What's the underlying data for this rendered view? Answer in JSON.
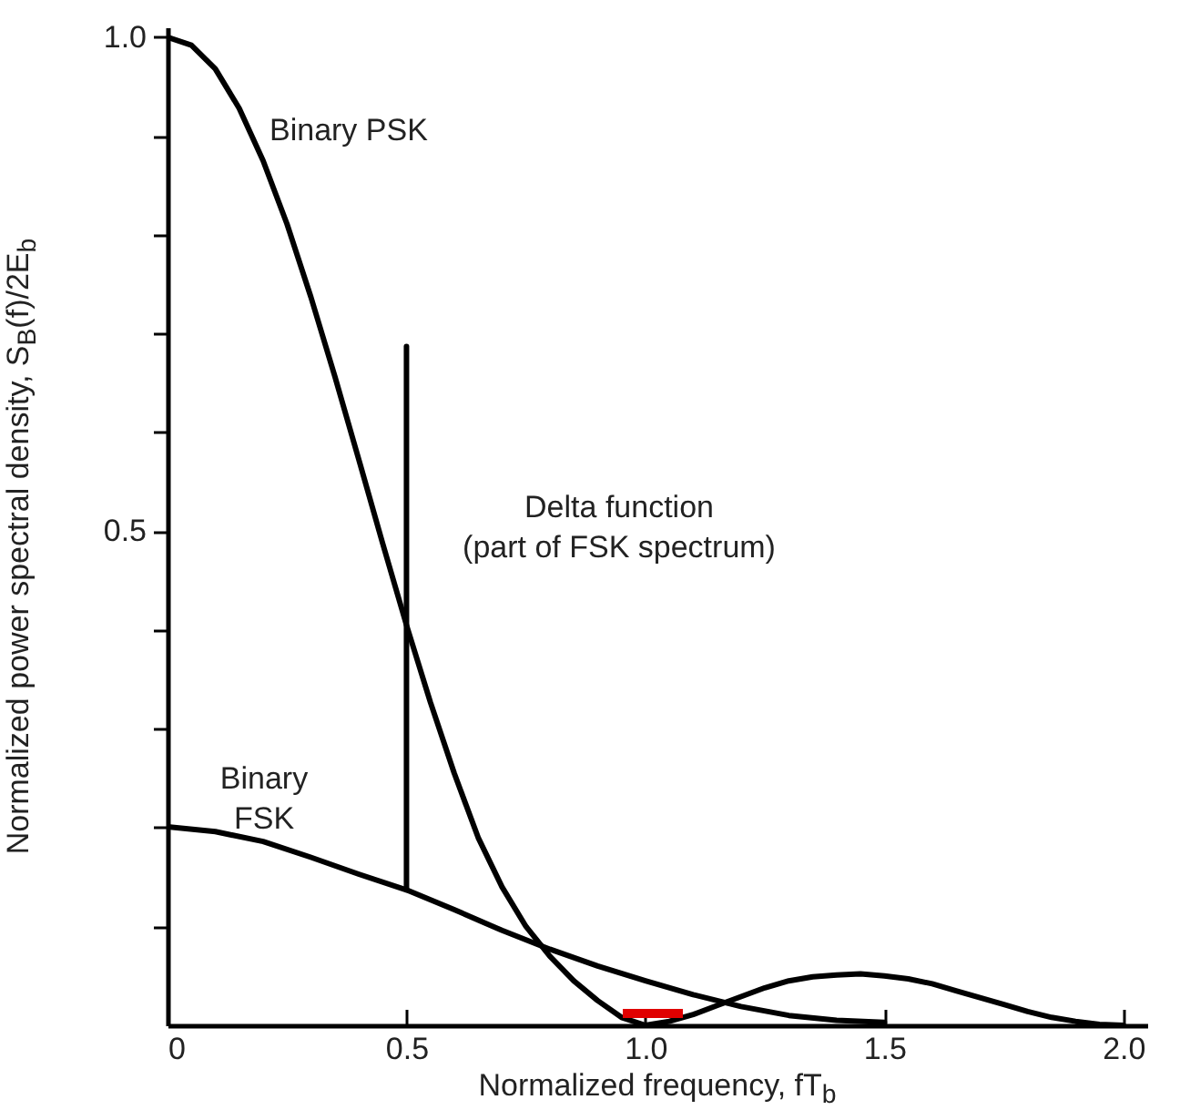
{
  "chart_data": {
    "type": "line",
    "xlabel": "Normalized frequency, fT$_{b}$",
    "ylabel": "Normalized power spectral density, S$_{B}$(f)/2E$_{b}$",
    "xlim": [
      0,
      2.05
    ],
    "ylim": [
      0,
      1.01
    ],
    "xticks": [
      0,
      0.5,
      {
        "value": 1,
        "label": "1.0"
      },
      1.5,
      {
        "value": 2,
        "label": "2.0"
      }
    ],
    "yticks": [
      {
        "value": 0.1,
        "label": null
      },
      {
        "value": 0.2,
        "label": null
      },
      {
        "value": 0.3,
        "label": null
      },
      {
        "value": 0.4,
        "label": null
      },
      0.5,
      {
        "value": 0.6,
        "label": null
      },
      {
        "value": 0.7,
        "label": null
      },
      {
        "value": 0.8,
        "label": null
      },
      {
        "value": 0.9,
        "label": null
      },
      {
        "value": 1,
        "label": "1.0"
      }
    ],
    "marker": "none",
    "line_style": "solid",
    "series": [
      {
        "type": "line",
        "color": "#000000",
        "x": [
          0,
          0.05,
          0.1,
          0.15,
          0.2,
          0.25,
          0.3,
          0.35,
          0.4,
          0.45,
          0.5,
          0.55,
          0.6,
          0.65,
          0.7,
          0.75,
          0.8,
          0.85,
          0.9,
          0.95,
          1,
          1.05,
          1.1,
          1.15,
          1.2,
          1.25,
          1.3,
          1.35,
          1.4,
          1.45,
          1.5,
          1.55,
          1.6,
          1.65,
          1.7,
          1.75,
          1.8,
          1.85,
          1.9,
          1.95,
          2
        ],
        "values": [
          1,
          0.992,
          0.968,
          0.928,
          0.875,
          0.811,
          0.737,
          0.657,
          0.573,
          0.488,
          0.405,
          0.327,
          0.255,
          0.19,
          0.14,
          0.1,
          0.07,
          0.045,
          0.025,
          0.008,
          0,
          0.004,
          0.011,
          0.02,
          0.029,
          0.038,
          0.045,
          0.049,
          0.051,
          0.052,
          0.05,
          0.047,
          0.042,
          0.035,
          0.028,
          0.021,
          0.014,
          0.008,
          0.004,
          0.001,
          0
        ]
      },
      {
        "type": "line",
        "color": "#000000",
        "x": [
          0,
          0.1,
          0.2,
          0.3,
          0.4,
          0.5,
          0.6,
          0.7,
          0.8,
          0.9,
          1,
          1.1,
          1.2,
          1.3,
          1.4,
          1.5
        ],
        "values": [
          0.201,
          0.196,
          0.186,
          0.17,
          0.153,
          0.137,
          0.117,
          0.096,
          0.077,
          0.06,
          0.045,
          0.031,
          0.019,
          0.01,
          0.005,
          0.003
        ]
      },
      {
        "type": "line",
        "color": "#000000",
        "x": [
          0.5,
          0.5
        ],
        "values": [
          0.137,
          0.687
        ]
      }
    ],
    "annotations": [
      "Binary PSK",
      "Delta function\n(part of FSK spectrum)",
      "Binary\nFSK"
    ]
  }
}
